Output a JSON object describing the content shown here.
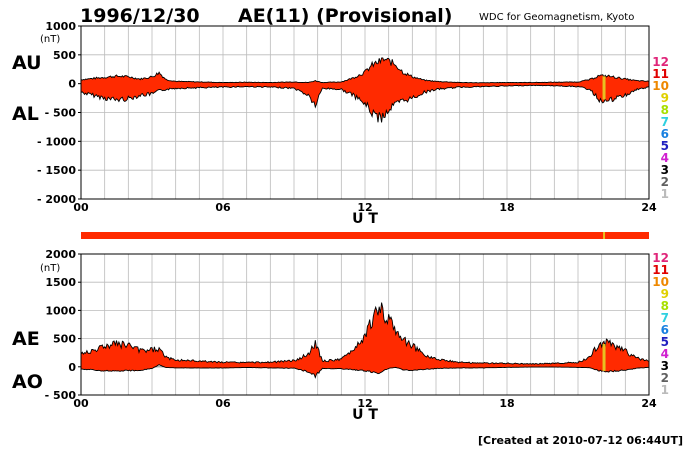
{
  "header": {
    "date": "1996/12/30",
    "title": "AE(11) (Provisional)",
    "source": "WDC for Geomagnetism, Kyoto"
  },
  "footer": {
    "created": "[Created at 2010-07-12 06:44UT]"
  },
  "colors": {
    "fill": "#ff2a00",
    "band": "#ff2a00",
    "band_marker": "#e8c020",
    "grid": "#bbbbbb"
  },
  "legend": {
    "items": [
      {
        "label": "12",
        "color": "#e0267a"
      },
      {
        "label": "11",
        "color": "#e00000"
      },
      {
        "label": "10",
        "color": "#ee8800"
      },
      {
        "label": "9",
        "color": "#e0d000"
      },
      {
        "label": "8",
        "color": "#a8e000"
      },
      {
        "label": "7",
        "color": "#30d0e0"
      },
      {
        "label": "6",
        "color": "#1880e0"
      },
      {
        "label": "5",
        "color": "#2020c0"
      },
      {
        "label": "4",
        "color": "#d020d0"
      },
      {
        "label": "3",
        "color": "#000000"
      },
      {
        "label": "2",
        "color": "#606060"
      },
      {
        "label": "1",
        "color": "#bbbbbb"
      }
    ]
  },
  "chart_data": [
    {
      "type": "area",
      "name": "AU/AL",
      "labels": [
        "AU",
        "AL"
      ],
      "unit": "(nT)",
      "ylim": [
        -2000,
        1000
      ],
      "yticks": [
        "1000",
        "500",
        "0",
        "- 500",
        "- 1000",
        "- 1500",
        "- 2000"
      ],
      "ytick_values": [
        1000,
        500,
        0,
        -500,
        -1000,
        -1500,
        -2000
      ],
      "xlim": [
        0,
        24
      ],
      "xticks": [
        "00",
        "06",
        "12",
        "18",
        "24"
      ],
      "xtick_values": [
        0,
        6,
        12,
        18,
        24
      ],
      "xlabel": "U T",
      "grid": true,
      "x": [
        0,
        0.5,
        1,
        1.5,
        2,
        2.5,
        3,
        3.3,
        3.6,
        4,
        5,
        6,
        7,
        8,
        9,
        9.6,
        9.9,
        10.2,
        11,
        11.5,
        12,
        12.3,
        12.6,
        12.8,
        13,
        13.3,
        13.6,
        14,
        14.5,
        15,
        16,
        17,
        18,
        19,
        20,
        21,
        21.5,
        21.9,
        22.3,
        23,
        23.5,
        24
      ],
      "au": [
        70,
        90,
        110,
        130,
        120,
        80,
        120,
        190,
        70,
        40,
        30,
        20,
        25,
        20,
        30,
        20,
        50,
        20,
        30,
        100,
        200,
        320,
        380,
        420,
        390,
        330,
        200,
        120,
        60,
        40,
        20,
        15,
        20,
        20,
        25,
        30,
        70,
        140,
        130,
        80,
        50,
        40
      ],
      "al": [
        -150,
        -200,
        -250,
        -280,
        -260,
        -200,
        -180,
        -120,
        -100,
        -80,
        -70,
        -60,
        -50,
        -60,
        -80,
        -200,
        -380,
        -80,
        -100,
        -200,
        -350,
        -500,
        -600,
        -550,
        -450,
        -350,
        -300,
        -250,
        -150,
        -100,
        -60,
        -50,
        -40,
        -30,
        -35,
        -50,
        -100,
        -280,
        -300,
        -200,
        -100,
        -60
      ],
      "markers": [
        {
          "x": 22.1,
          "color": "#e8c020"
        }
      ]
    },
    {
      "type": "area",
      "name": "AE/AO",
      "labels": [
        "AE",
        "AO"
      ],
      "unit": "(nT)",
      "ylim": [
        -500,
        2000
      ],
      "yticks": [
        "2000",
        "1500",
        "1000",
        "500",
        "0",
        "- 500"
      ],
      "ytick_values": [
        2000,
        1500,
        1000,
        500,
        0,
        -500
      ],
      "xlim": [
        0,
        24
      ],
      "xticks": [
        "00",
        "06",
        "12",
        "18",
        "24"
      ],
      "xtick_values": [
        0,
        6,
        12,
        18,
        24
      ],
      "xlabel": "U T",
      "grid": true,
      "x": [
        0,
        0.5,
        1,
        1.5,
        2,
        2.5,
        3,
        3.3,
        3.6,
        4,
        5,
        6,
        7,
        8,
        9,
        9.6,
        9.9,
        10.2,
        11,
        11.5,
        12,
        12.3,
        12.6,
        12.8,
        13,
        13.3,
        13.6,
        14,
        14.5,
        15,
        16,
        17,
        18,
        19,
        20,
        21,
        21.5,
        21.9,
        22.3,
        23,
        23.5,
        24
      ],
      "ae": [
        220,
        290,
        360,
        410,
        380,
        280,
        300,
        310,
        170,
        120,
        100,
        80,
        75,
        80,
        110,
        220,
        430,
        100,
        130,
        300,
        550,
        820,
        980,
        970,
        840,
        680,
        500,
        370,
        210,
        140,
        80,
        65,
        60,
        50,
        60,
        80,
        170,
        420,
        430,
        280,
        150,
        100
      ],
      "ao": [
        -40,
        -55,
        -70,
        -75,
        -70,
        -60,
        -30,
        35,
        -15,
        -20,
        -20,
        -20,
        -12,
        -20,
        -25,
        -90,
        -165,
        -30,
        -35,
        -50,
        -75,
        -90,
        -110,
        -65,
        -30,
        -10,
        -50,
        -65,
        -45,
        -30,
        -20,
        -18,
        -10,
        -5,
        -5,
        -10,
        -15,
        -70,
        -85,
        -60,
        -25,
        -10
      ],
      "markers": [
        {
          "x": 22.1,
          "color": "#e8c020"
        }
      ]
    }
  ]
}
